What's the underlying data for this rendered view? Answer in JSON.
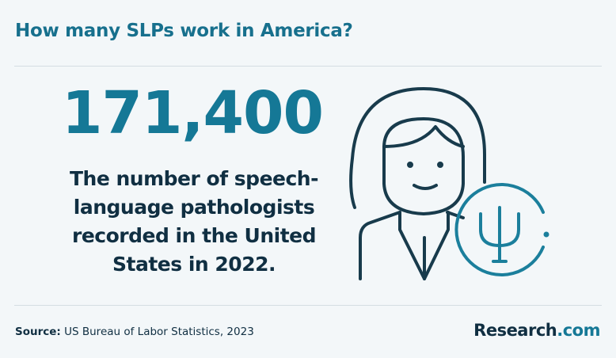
{
  "header": {
    "title": "How many SLPs work in America?"
  },
  "stat": {
    "value": "171,400",
    "description_lines": [
      "The number of speech-",
      "language pathologists",
      "recorded in the United",
      "States in 2022."
    ]
  },
  "footer": {
    "source_label": "Source:",
    "source_text": "US Bureau of Labor Statistics, 2023",
    "brand_name": "Research",
    "brand_suffix": ".com"
  }
}
